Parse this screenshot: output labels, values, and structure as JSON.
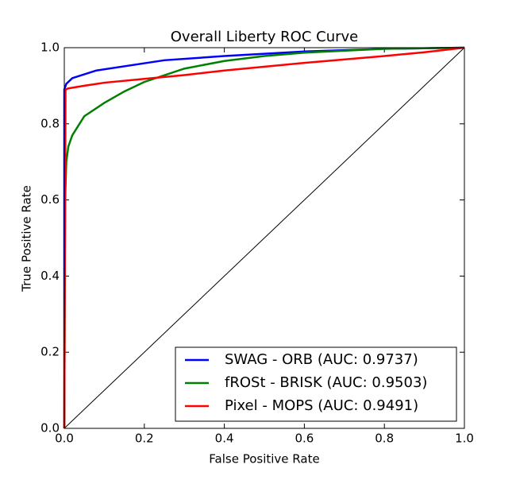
{
  "chart_data": {
    "type": "line",
    "title": "Overall Liberty ROC Curve",
    "x_label": "False Positive Rate",
    "y_label": "True Positive Rate",
    "xlim": [
      0,
      1
    ],
    "ylim": [
      0,
      1
    ],
    "xticks": [
      {
        "value": 0,
        "label": "0.0"
      },
      0.2,
      0.4,
      0.6,
      0.8,
      {
        "value": 1,
        "label": "1.0"
      }
    ],
    "yticks": [
      {
        "value": 0,
        "label": "0.0"
      },
      0.2,
      0.4,
      0.6,
      0.8,
      {
        "value": 1,
        "label": "1.0"
      }
    ],
    "legend_position": "lower right",
    "series": [
      {
        "name": "SWAG - ORB (AUC: 0.9737)",
        "color": "#0000ff",
        "x": [
          0,
          0,
          0.005,
          0.02,
          0.08,
          0.25,
          0.4,
          0.6,
          0.8,
          1
        ],
        "values": [
          0,
          0.89,
          0.905,
          0.92,
          0.94,
          0.967,
          0.978,
          0.99,
          0.997,
          1
        ]
      },
      {
        "name": "fROSt - BRISK (AUC: 0.9503)",
        "color": "#008000",
        "x": [
          0,
          0.002,
          0.005,
          0.01,
          0.02,
          0.05,
          0.1,
          0.15,
          0.2,
          0.3,
          0.4,
          0.5,
          0.6,
          0.8,
          1
        ],
        "values": [
          0,
          0.6,
          0.7,
          0.74,
          0.77,
          0.82,
          0.855,
          0.885,
          0.91,
          0.945,
          0.965,
          0.978,
          0.987,
          0.997,
          1
        ]
      },
      {
        "name": "Pixel - MOPS (AUC: 0.9491)",
        "color": "#ff0000",
        "x": [
          0,
          0.003,
          0.01,
          0.05,
          0.1,
          0.2,
          0.3,
          0.4,
          0.6,
          0.8,
          0.9,
          1
        ],
        "values": [
          0,
          0.89,
          0.893,
          0.9,
          0.908,
          0.918,
          0.928,
          0.94,
          0.96,
          0.978,
          0.988,
          1
        ]
      }
    ],
    "reference_line": {
      "color": "#000000",
      "x": [
        0,
        1
      ],
      "values": [
        0,
        1
      ]
    }
  }
}
